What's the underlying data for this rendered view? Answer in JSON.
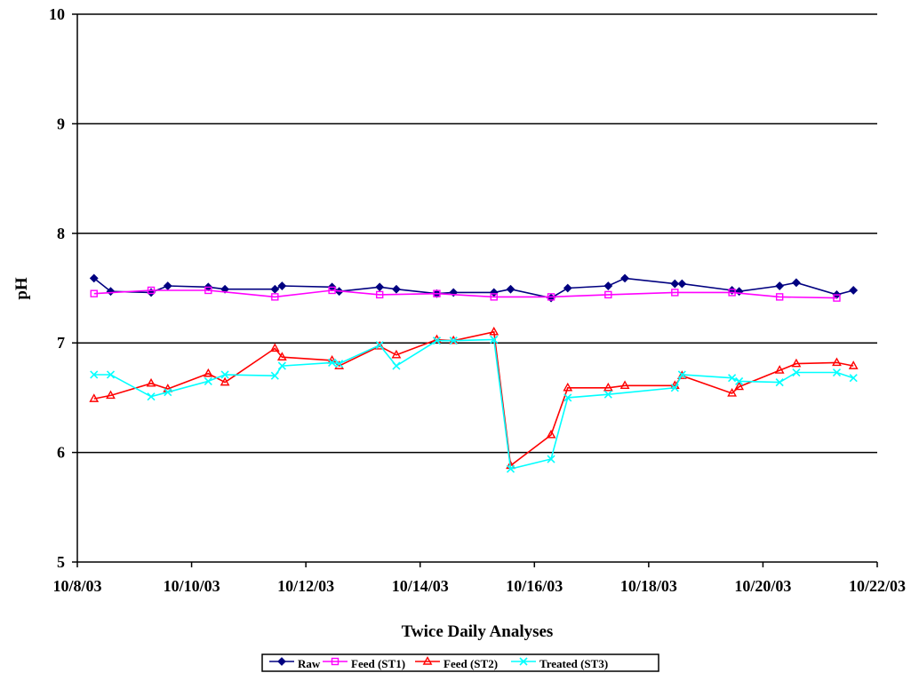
{
  "chart_data": {
    "type": "line",
    "title": "",
    "xlabel": "Twice Daily Analyses",
    "ylabel": "pH",
    "ylim": [
      5,
      10
    ],
    "yticks": [
      5,
      6,
      7,
      8,
      9,
      10
    ],
    "xlim": [
      "2003-10-08",
      "2003-10-22"
    ],
    "xticks": [
      "2003-10-08",
      "2003-10-10",
      "2003-10-12",
      "2003-10-14",
      "2003-10-16",
      "2003-10-18",
      "2003-10-20",
      "2003-10-22"
    ],
    "xtick_labels": [
      "10/8/03",
      "10/10/03",
      "10/12/03",
      "10/14/03",
      "10/16/03",
      "10/18/03",
      "10/20/03",
      "10/22/03"
    ],
    "grid": "horizontal-major",
    "legend": "bottom-center",
    "series": [
      {
        "name": "Raw",
        "color": "#000080",
        "marker": "diamond",
        "points": [
          [
            "2003-10-08 07:00",
            7.59
          ],
          [
            "2003-10-08 14:00",
            7.47
          ],
          [
            "2003-10-09 07:00",
            7.46
          ],
          [
            "2003-10-09 14:00",
            7.52
          ],
          [
            "2003-10-10 07:00",
            7.51
          ],
          [
            "2003-10-10 14:00",
            7.49
          ],
          [
            "2003-10-11 11:00",
            7.49
          ],
          [
            "2003-10-11 14:00",
            7.52
          ],
          [
            "2003-10-12 11:00",
            7.51
          ],
          [
            "2003-10-12 14:00",
            7.47
          ],
          [
            "2003-10-13 07:00",
            7.51
          ],
          [
            "2003-10-13 14:00",
            7.49
          ],
          [
            "2003-10-14 07:00",
            7.45
          ],
          [
            "2003-10-14 14:00",
            7.46
          ],
          [
            "2003-10-15 07:00",
            7.46
          ],
          [
            "2003-10-15 14:00",
            7.49
          ],
          [
            "2003-10-16 07:00",
            7.41
          ],
          [
            "2003-10-16 14:00",
            7.5
          ],
          [
            "2003-10-17 07:00",
            7.52
          ],
          [
            "2003-10-17 14:00",
            7.59
          ],
          [
            "2003-10-18 11:00",
            7.54
          ],
          [
            "2003-10-18 14:00",
            7.54
          ],
          [
            "2003-10-19 11:00",
            7.48
          ],
          [
            "2003-10-19 14:00",
            7.47
          ],
          [
            "2003-10-20 07:00",
            7.52
          ],
          [
            "2003-10-20 14:00",
            7.55
          ],
          [
            "2003-10-21 07:00",
            7.44
          ],
          [
            "2003-10-21 14:00",
            7.48
          ]
        ]
      },
      {
        "name": "Feed (ST1)",
        "color": "#FF00FF",
        "marker": "square",
        "points": [
          [
            "2003-10-08 07:00",
            7.45
          ],
          [
            "2003-10-09 07:00",
            7.48
          ],
          [
            "2003-10-10 07:00",
            7.48
          ],
          [
            "2003-10-11 11:00",
            7.42
          ],
          [
            "2003-10-12 11:00",
            7.48
          ],
          [
            "2003-10-13 07:00",
            7.44
          ],
          [
            "2003-10-14 07:00",
            7.45
          ],
          [
            "2003-10-15 07:00",
            7.42
          ],
          [
            "2003-10-16 07:00",
            7.42
          ],
          [
            "2003-10-17 07:00",
            7.44
          ],
          [
            "2003-10-18 11:00",
            7.46
          ],
          [
            "2003-10-19 11:00",
            7.46
          ],
          [
            "2003-10-20 07:00",
            7.42
          ],
          [
            "2003-10-21 07:00",
            7.41
          ]
        ]
      },
      {
        "name": "Feed (ST2)",
        "color": "#FF0000",
        "marker": "triangle",
        "points": [
          [
            "2003-10-08 07:00",
            6.49
          ],
          [
            "2003-10-08 14:00",
            6.52
          ],
          [
            "2003-10-09 07:00",
            6.63
          ],
          [
            "2003-10-09 14:00",
            6.58
          ],
          [
            "2003-10-10 07:00",
            6.72
          ],
          [
            "2003-10-10 14:00",
            6.64
          ],
          [
            "2003-10-11 11:00",
            6.95
          ],
          [
            "2003-10-11 14:00",
            6.87
          ],
          [
            "2003-10-12 11:00",
            6.84
          ],
          [
            "2003-10-12 14:00",
            6.79
          ],
          [
            "2003-10-13 07:00",
            6.97
          ],
          [
            "2003-10-13 14:00",
            6.89
          ],
          [
            "2003-10-14 07:00",
            7.03
          ],
          [
            "2003-10-14 14:00",
            7.02
          ],
          [
            "2003-10-15 07:00",
            7.1
          ],
          [
            "2003-10-15 14:00",
            5.88
          ],
          [
            "2003-10-16 07:00",
            6.16
          ],
          [
            "2003-10-16 14:00",
            6.59
          ],
          [
            "2003-10-17 07:00",
            6.59
          ],
          [
            "2003-10-17 14:00",
            6.61
          ],
          [
            "2003-10-18 11:00",
            6.61
          ],
          [
            "2003-10-18 14:00",
            6.7
          ],
          [
            "2003-10-19 11:00",
            6.54
          ],
          [
            "2003-10-19 14:00",
            6.6
          ],
          [
            "2003-10-20 07:00",
            6.75
          ],
          [
            "2003-10-20 14:00",
            6.81
          ],
          [
            "2003-10-21 07:00",
            6.82
          ],
          [
            "2003-10-21 14:00",
            6.79
          ]
        ]
      },
      {
        "name": "Treated (ST3)",
        "color": "#00FFFF",
        "marker": "x",
        "points": [
          [
            "2003-10-08 07:00",
            6.71
          ],
          [
            "2003-10-08 14:00",
            6.71
          ],
          [
            "2003-10-09 07:00",
            6.51
          ],
          [
            "2003-10-09 14:00",
            6.55
          ],
          [
            "2003-10-10 07:00",
            6.65
          ],
          [
            "2003-10-10 14:00",
            6.71
          ],
          [
            "2003-10-11 11:00",
            6.7
          ],
          [
            "2003-10-11 14:00",
            6.79
          ],
          [
            "2003-10-12 11:00",
            6.82
          ],
          [
            "2003-10-12 14:00",
            6.81
          ],
          [
            "2003-10-13 07:00",
            6.98
          ],
          [
            "2003-10-13 14:00",
            6.79
          ],
          [
            "2003-10-14 07:00",
            7.02
          ],
          [
            "2003-10-14 14:00",
            7.02
          ],
          [
            "2003-10-15 07:00",
            7.03
          ],
          [
            "2003-10-15 14:00",
            5.85
          ],
          [
            "2003-10-16 07:00",
            5.94
          ],
          [
            "2003-10-16 14:00",
            6.5
          ],
          [
            "2003-10-17 07:00",
            6.53
          ],
          [
            "2003-10-18 11:00",
            6.59
          ],
          [
            "2003-10-18 14:00",
            6.71
          ],
          [
            "2003-10-19 11:00",
            6.68
          ],
          [
            "2003-10-19 14:00",
            6.65
          ],
          [
            "2003-10-20 07:00",
            6.64
          ],
          [
            "2003-10-20 14:00",
            6.73
          ],
          [
            "2003-10-21 07:00",
            6.73
          ],
          [
            "2003-10-21 14:00",
            6.68
          ]
        ]
      }
    ]
  }
}
